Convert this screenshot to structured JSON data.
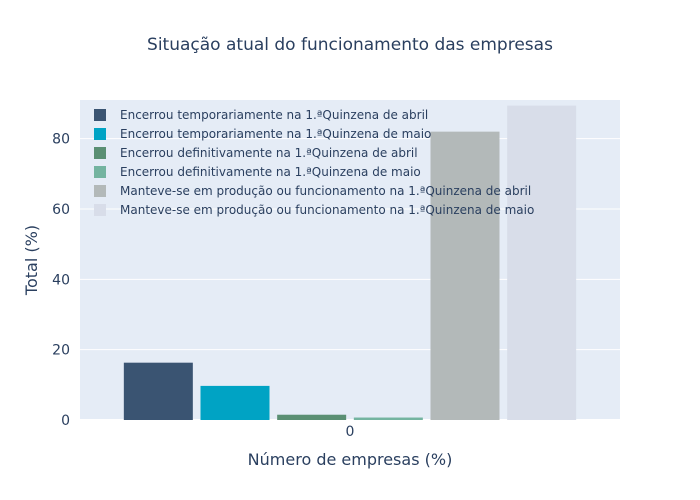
{
  "chart_data": {
    "type": "bar",
    "title": "Situação atual do funcionamento das empresas",
    "xlabel": "Número de empresas (%)",
    "ylabel": "Total (%)",
    "categories": [
      "0"
    ],
    "ylim": [
      0,
      91
    ],
    "yticks": [
      0,
      20,
      40,
      60,
      80
    ],
    "grid": true,
    "legend_position": "top-left",
    "series": [
      {
        "name": "Encerrou temporariamente na 1.ªQuinzena de abril",
        "values": [
          16.3
        ],
        "color": "#3a5472"
      },
      {
        "name": "Encerrou temporariamente na 1.ªQuinzena de maio",
        "values": [
          9.7
        ],
        "color": "#00a3c4"
      },
      {
        "name": "Encerrou definitivamente na 1.ªQuinzena de abril",
        "values": [
          1.5
        ],
        "color": "#5a8f73"
      },
      {
        "name": "Encerrou definitivamente na 1.ªQuinzena de maio",
        "values": [
          0.7
        ],
        "color": "#74b4a0"
      },
      {
        "name": "Manteve-se em produção ou funcionamento na 1.ªQuinzena de abril",
        "values": [
          82.0
        ],
        "color": "#b3b9b9"
      },
      {
        "name": "Manteve-se em produção ou funcionamento na 1.ªQuinzena de maio",
        "values": [
          89.4
        ],
        "color": "#d8dde9"
      }
    ]
  }
}
